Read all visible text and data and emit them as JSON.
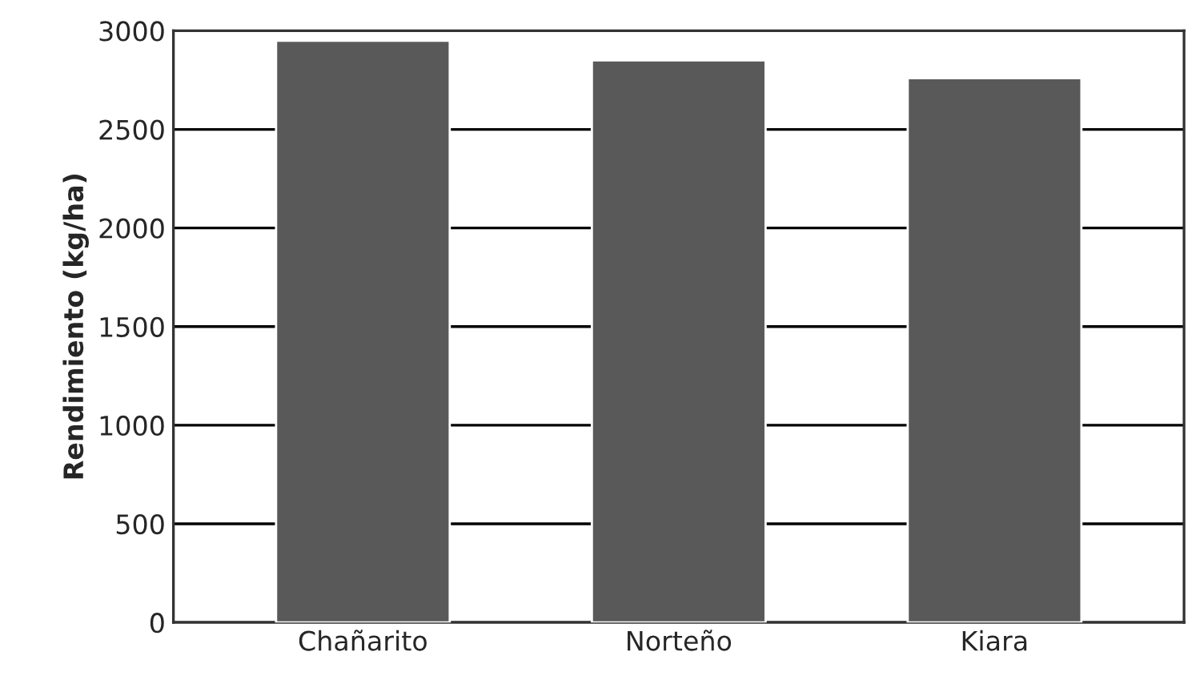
{
  "chart_data": {
    "type": "bar",
    "ylabel": "Rendimiento (kg/ha)",
    "categories": [
      "Chañarito",
      "Norteño",
      "Kiara"
    ],
    "values": [
      2950,
      2850,
      2760
    ],
    "color": "#595959",
    "ylim": [
      0,
      3000
    ],
    "yticks": [
      0,
      500,
      1000,
      1500,
      2000,
      2500,
      3000
    ],
    "grid": "y",
    "legend": false
  }
}
